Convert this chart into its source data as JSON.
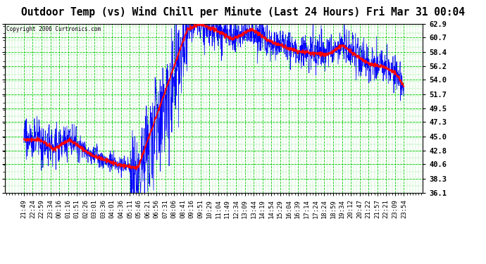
{
  "title": "Outdoor Temp (vs) Wind Chill per Minute (Last 24 Hours) Fri Mar 31 00:04",
  "copyright": "Copyright 2006 Curtronics.com",
  "yticks": [
    36.1,
    38.3,
    40.6,
    42.8,
    45.0,
    47.3,
    49.5,
    51.7,
    54.0,
    56.2,
    58.4,
    60.7,
    62.9
  ],
  "ymin": 36.1,
  "ymax": 62.9,
  "xtick_labels": [
    "21:49",
    "22:24",
    "22:59",
    "23:34",
    "00:16",
    "01:16",
    "01:51",
    "02:26",
    "03:01",
    "03:36",
    "04:01",
    "04:36",
    "05:11",
    "05:46",
    "06:21",
    "06:56",
    "07:31",
    "08:06",
    "08:41",
    "09:16",
    "09:51",
    "10:29",
    "11:04",
    "11:49",
    "12:34",
    "13:09",
    "13:44",
    "14:19",
    "14:54",
    "15:29",
    "16:04",
    "16:39",
    "17:14",
    "17:24",
    "18:24",
    "18:59",
    "19:34",
    "20:12",
    "20:47",
    "21:22",
    "21:57",
    "22:21",
    "23:09",
    "23:54"
  ],
  "background_color": "#ffffff",
  "plot_bg_color": "#ffffff",
  "grid_color": "#00cc00",
  "line_blue": "#0000ff",
  "line_red": "#ff0000",
  "title_fontsize": 10.5,
  "tick_fontsize": 6.5,
  "red_linewidth": 1.2,
  "blue_linewidth": 0.5
}
